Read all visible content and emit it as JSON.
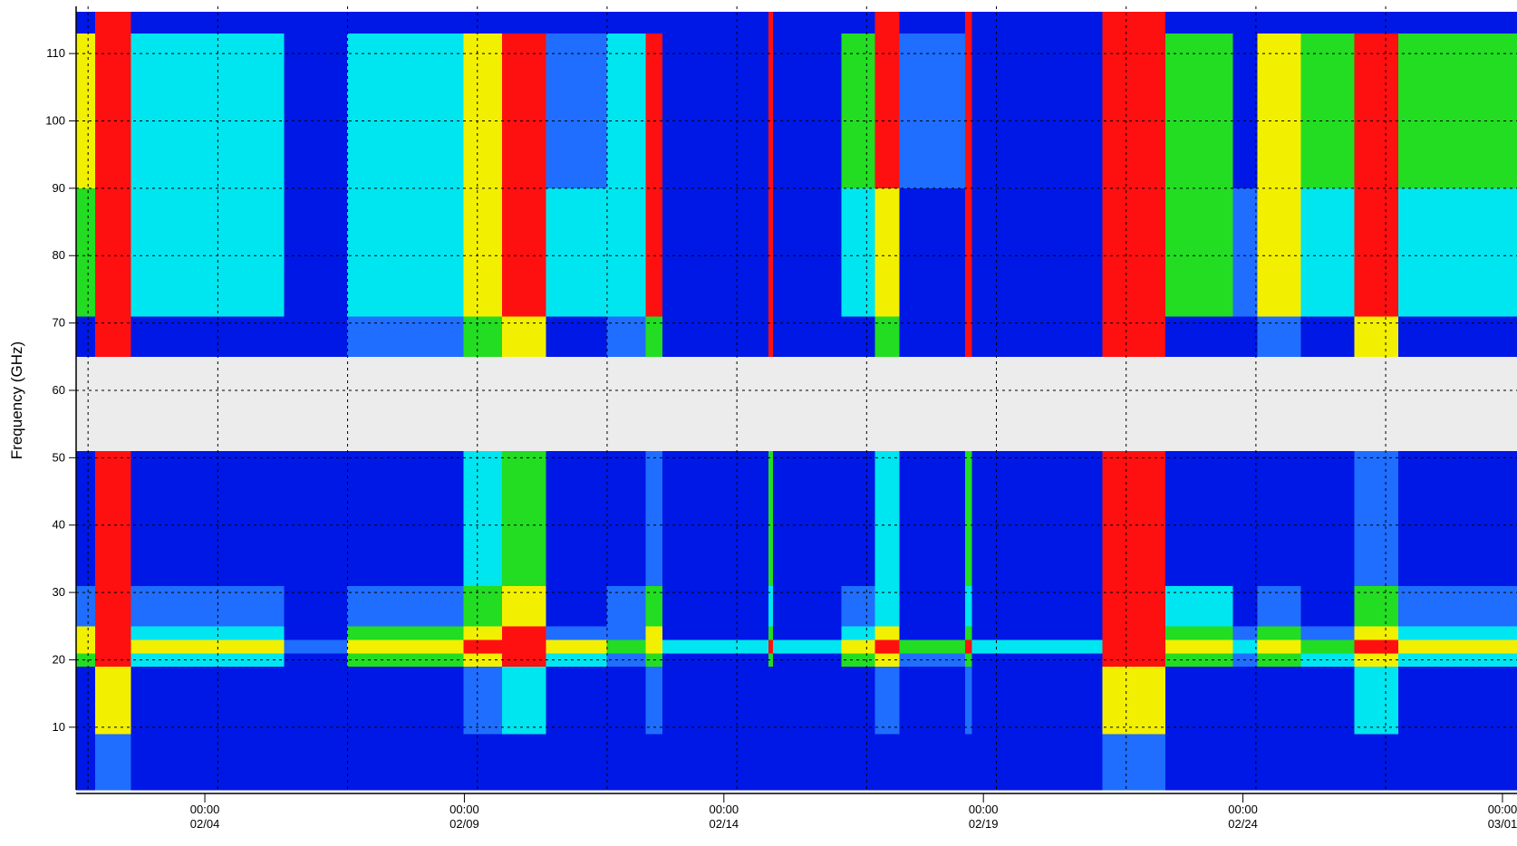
{
  "chart_data": {
    "type": "heatmap",
    "y_label": "Frequency (GHz)",
    "x_edges": [
      32.52,
      32.89,
      33.58,
      36.53,
      37.74,
      39.98,
      40.73,
      41.57,
      42.74,
      43.49,
      43.82,
      45.86,
      45.95,
      47.26,
      47.91,
      48.38,
      49.65,
      49.78,
      52.29,
      53.51,
      54.81,
      55.28,
      56.12,
      57.15,
      57.99,
      60.28
    ],
    "y_edges": [
      0.7,
      9,
      19,
      21,
      23,
      25,
      31,
      51,
      65,
      71,
      90,
      113,
      116.2
    ],
    "values": [
      [
        0,
        0,
        3,
        4,
        4,
        1,
        0,
        null,
        0,
        3,
        4,
        0
      ],
      [
        1,
        4,
        5,
        5,
        5,
        5,
        5,
        null,
        5,
        5,
        5,
        5
      ],
      [
        0,
        0,
        2,
        4,
        2,
        1,
        0,
        null,
        0,
        2,
        2,
        0
      ],
      [
        0,
        0,
        0,
        1,
        0,
        0,
        0,
        null,
        0,
        0,
        0,
        0
      ],
      [
        0,
        0,
        3,
        4,
        3,
        1,
        0,
        null,
        1,
        2,
        2,
        0
      ],
      [
        0,
        1,
        4,
        5,
        4,
        3,
        2,
        null,
        3,
        4,
        4,
        0
      ],
      [
        0,
        2,
        5,
        5,
        5,
        4,
        3,
        null,
        4,
        5,
        5,
        0
      ],
      [
        0,
        0,
        2,
        4,
        1,
        0,
        0,
        null,
        0,
        2,
        1,
        0
      ],
      [
        0,
        0,
        1,
        3,
        1,
        1,
        0,
        null,
        1,
        2,
        2,
        0
      ],
      [
        0,
        1,
        3,
        4,
        4,
        3,
        1,
        null,
        3,
        5,
        5,
        0
      ],
      [
        0,
        0,
        0,
        2,
        0,
        0,
        0,
        null,
        0,
        0,
        0,
        0
      ],
      [
        0,
        0,
        3,
        5,
        3,
        2,
        3,
        null,
        5,
        5,
        5,
        5
      ],
      [
        0,
        0,
        0,
        2,
        0,
        0,
        0,
        null,
        0,
        0,
        0,
        0
      ],
      [
        0,
        0,
        3,
        4,
        2,
        1,
        0,
        null,
        0,
        2,
        3,
        0
      ],
      [
        0,
        1,
        4,
        5,
        4,
        2,
        2,
        null,
        3,
        4,
        5,
        5
      ],
      [
        0,
        0,
        1,
        3,
        0,
        0,
        0,
        null,
        0,
        0,
        1,
        0
      ],
      [
        0,
        1,
        3,
        5,
        3,
        2,
        3,
        null,
        5,
        5,
        5,
        5
      ],
      [
        0,
        0,
        0,
        2,
        0,
        0,
        0,
        null,
        0,
        0,
        0,
        0
      ],
      [
        1,
        4,
        5,
        5,
        5,
        5,
        5,
        null,
        5,
        5,
        5,
        5
      ],
      [
        0,
        0,
        3,
        4,
        3,
        2,
        0,
        null,
        0,
        3,
        3,
        0
      ],
      [
        0,
        0,
        1,
        2,
        1,
        0,
        0,
        null,
        0,
        1,
        0,
        0
      ],
      [
        0,
        0,
        3,
        4,
        3,
        1,
        0,
        null,
        1,
        4,
        4,
        0
      ],
      [
        0,
        0,
        2,
        3,
        1,
        0,
        0,
        null,
        0,
        2,
        3,
        0
      ],
      [
        0,
        2,
        4,
        5,
        4,
        3,
        1,
        null,
        4,
        5,
        5,
        0
      ],
      [
        0,
        0,
        2,
        4,
        2,
        1,
        0,
        null,
        0,
        2,
        3,
        0
      ]
    ],
    "colors": [
      "#0018e6",
      "#1f6eff",
      "#00e6f0",
      "#22dd22",
      "#f2f000",
      "#ff1010"
    ],
    "xlim": [
      32.52,
      60.28
    ],
    "ylim": [
      0.7,
      116.2
    ],
    "xticks": [
      {
        "value": 35,
        "label": "00:00",
        "date": "02/04"
      },
      {
        "value": 40,
        "label": "00:00",
        "date": "02/09"
      },
      {
        "value": 45,
        "label": "00:00",
        "date": "02/14"
      },
      {
        "value": 50,
        "label": "00:00",
        "date": "02/19"
      },
      {
        "value": 55,
        "label": "00:00",
        "date": "02/24"
      },
      {
        "value": 60,
        "label": "00:00",
        "date": "03/01"
      }
    ],
    "xgrid": [
      32.75,
      35.25,
      37.75,
      40.25,
      42.75,
      45.25,
      47.75,
      50.25,
      52.75,
      55.25,
      57.75
    ],
    "yticks": [
      10,
      20,
      30,
      40,
      50,
      60,
      70,
      80,
      90,
      100,
      110
    ],
    "grid": true
  }
}
